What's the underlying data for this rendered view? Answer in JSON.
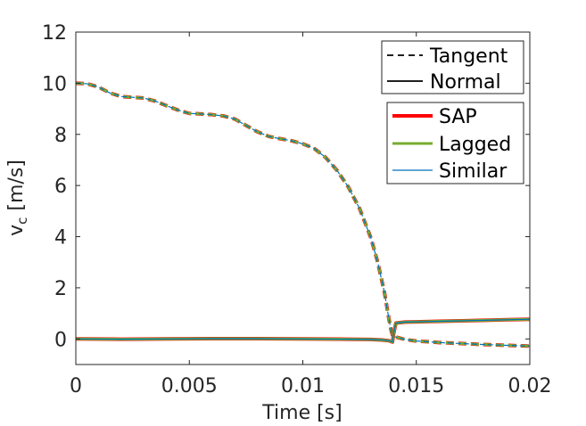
{
  "chart_data": {
    "type": "line",
    "xlabel": "Time [s]",
    "ylabel_main": "v",
    "ylabel_sub": "c",
    "ylabel_unit": "[m/s]",
    "xlim": [
      0,
      0.02
    ],
    "ylim": [
      -1,
      12
    ],
    "x_ticks": [
      0,
      0.005,
      0.01,
      0.015,
      0.02
    ],
    "x_tick_labels": [
      "0",
      "0.005",
      "0.01",
      "0.015",
      "0.02"
    ],
    "y_ticks": [
      0,
      2,
      4,
      6,
      8,
      10,
      12
    ],
    "y_tick_labels": [
      "0",
      "2",
      "4",
      "6",
      "8",
      "10",
      "12"
    ],
    "grid": false,
    "legend_style": {
      "position": "top-right",
      "entries": [
        {
          "label": "Tangent",
          "line": "dashed",
          "color": "#000000"
        },
        {
          "label": "Normal",
          "line": "solid",
          "color": "#000000"
        }
      ]
    },
    "legend_method": {
      "position": "top-right",
      "entries": [
        {
          "label": "SAP",
          "color": "#ff0000"
        },
        {
          "label": "Lagged",
          "color": "#77ac30"
        },
        {
          "label": "Similar",
          "color": "#0072bd"
        }
      ]
    },
    "series": [
      {
        "component": "Tangent",
        "x": [
          0,
          0.0005,
          0.001,
          0.0015,
          0.002,
          0.0025,
          0.003,
          0.0035,
          0.004,
          0.0045,
          0.005,
          0.0055,
          0.006,
          0.0065,
          0.007,
          0.0075,
          0.008,
          0.0085,
          0.009,
          0.0095,
          0.01,
          0.0105,
          0.011,
          0.0115,
          0.012,
          0.0125,
          0.013,
          0.0133,
          0.0136,
          0.0138,
          0.0139,
          0.01395,
          0.014,
          0.0145,
          0.015,
          0.016,
          0.017,
          0.018,
          0.019,
          0.02
        ],
        "y": [
          10.0,
          9.98,
          9.85,
          9.62,
          9.48,
          9.45,
          9.42,
          9.3,
          9.12,
          8.95,
          8.82,
          8.8,
          8.77,
          8.72,
          8.6,
          8.35,
          8.1,
          7.92,
          7.83,
          7.75,
          7.63,
          7.45,
          7.1,
          6.6,
          5.95,
          5.1,
          3.95,
          3.0,
          1.8,
          0.75,
          0.3,
          0.15,
          0.1,
          -0.02,
          -0.08,
          -0.14,
          -0.18,
          -0.22,
          -0.25,
          -0.28
        ]
      },
      {
        "component": "Normal",
        "x": [
          0,
          0.002,
          0.004,
          0.006,
          0.008,
          0.01,
          0.012,
          0.013,
          0.0135,
          0.0138,
          0.01395,
          0.014,
          0.0141,
          0.0145,
          0.015,
          0.016,
          0.017,
          0.018,
          0.019,
          0.02
        ],
        "y": [
          0.0,
          -0.01,
          0.0,
          0.01,
          0.01,
          0.0,
          -0.01,
          -0.02,
          -0.04,
          -0.07,
          -0.12,
          0.2,
          0.62,
          0.66,
          0.67,
          0.69,
          0.71,
          0.73,
          0.75,
          0.77
        ]
      }
    ]
  }
}
